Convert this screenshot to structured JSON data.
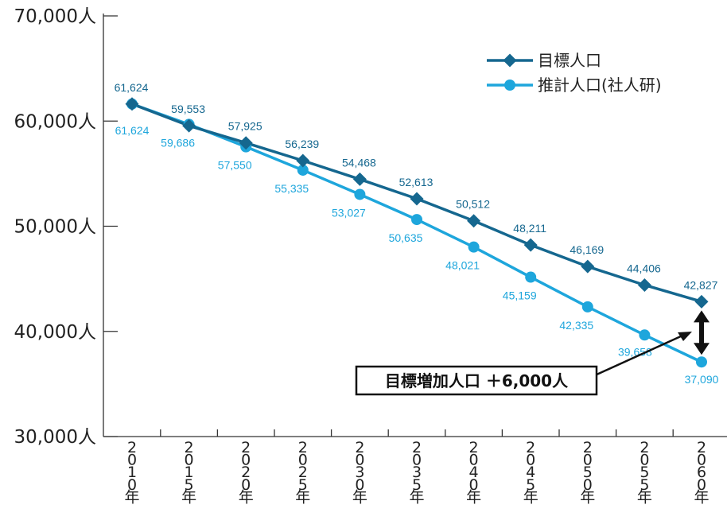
{
  "chart_data": {
    "type": "line",
    "categories": [
      "2010年",
      "2015年",
      "2020年",
      "2025年",
      "2030年",
      "2035年",
      "2040年",
      "2045年",
      "2050年",
      "2055年",
      "2060年"
    ],
    "ylim": [
      30000,
      70000
    ],
    "yticks": [
      "30,000人",
      "40,000人",
      "50,000人",
      "60,000人",
      "70,000人"
    ],
    "ytick_values": [
      30000,
      40000,
      50000,
      60000,
      70000
    ],
    "series": [
      {
        "name": "目標人口",
        "color": "#15678f",
        "marker": "diamond",
        "values": [
          61624,
          59553,
          57925,
          56239,
          54468,
          52613,
          50512,
          48211,
          46169,
          44406,
          42827
        ],
        "labels": [
          "61,624",
          "59,553",
          "57,925",
          "56,239",
          "54,468",
          "52,613",
          "50,512",
          "48,211",
          "46,169",
          "44,406",
          "42,827"
        ]
      },
      {
        "name": "推計人口(社人研)",
        "color": "#1ea6dc",
        "marker": "circle",
        "values": [
          61624,
          59686,
          57550,
          55335,
          53027,
          50635,
          48021,
          45159,
          42335,
          39658,
          37090
        ],
        "labels": [
          "61,624",
          "59,686",
          "57,550",
          "55,335",
          "53,027",
          "50,635",
          "48,021",
          "45,159",
          "42,335",
          "39,658",
          "37,090"
        ]
      }
    ],
    "legend_position": "top-right",
    "annotation": "目標増加人口 ＋6,000人"
  }
}
